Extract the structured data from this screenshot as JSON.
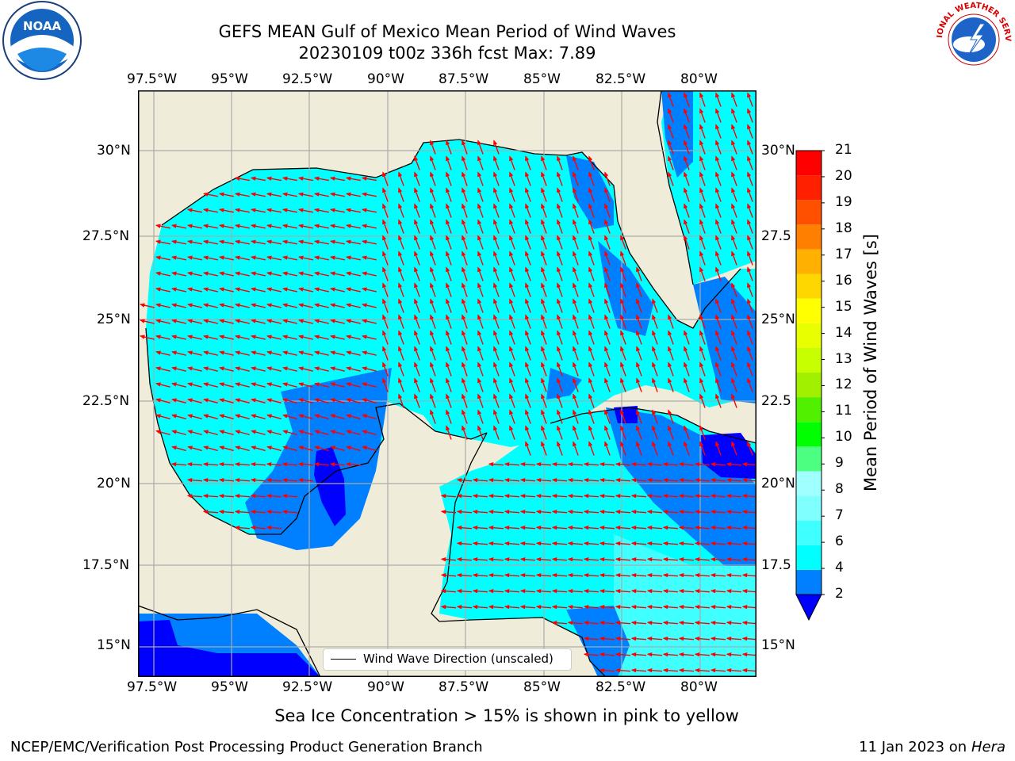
{
  "title": {
    "line1": "GEFS MEAN Gulf of Mexico Mean Period of Wind Waves",
    "line2": "20230109 t00z 336h fcst   Max: 7.89"
  },
  "logos": {
    "left": {
      "name": "noaa-logo",
      "text": "NOAA"
    },
    "right": {
      "name": "nws-logo",
      "text": "NATIONAL WEATHER SERVICE"
    }
  },
  "map": {
    "lon_labels": [
      "97.5°W",
      "95°W",
      "92.5°W",
      "90°W",
      "87.5°W",
      "85°W",
      "82.5°W",
      "80°W"
    ],
    "lat_labels_left": [
      "30°N",
      "27.5°N",
      "25°N",
      "22.5°N",
      "20°N",
      "17.5°N",
      "15°N"
    ],
    "lat_labels_right": [
      "30°N",
      "27.5",
      "25°N",
      "22.5",
      "20°N",
      "17.5",
      "15°N"
    ],
    "legend_label": "Wind Wave Direction (unscaled)",
    "land_color": "#efedda",
    "arrow_color": "#ff0000"
  },
  "colorbar": {
    "title": "Mean Period of Wind Waves [s]",
    "tick_labels": [
      "2",
      "4",
      "6",
      "7",
      "8",
      "9",
      "10",
      "11",
      "12",
      "13",
      "14",
      "15",
      "16",
      "17",
      "18",
      "19",
      "20",
      "21"
    ],
    "colors": [
      "#0000ff",
      "#0080ff",
      "#00ffff",
      "#40ffff",
      "#80ffff",
      "#a0ffff",
      "#4dff80",
      "#00ff00",
      "#50f000",
      "#a0f000",
      "#c8ff00",
      "#e8ff00",
      "#ffff00",
      "#ffd700",
      "#ffb000",
      "#ff8000",
      "#ff5000",
      "#ff2000",
      "#ff0000"
    ]
  },
  "subtitle": "Sea Ice Concentration > 15% is shown in pink to yellow",
  "footer": {
    "left": "NCEP/EMC/Verification Post Processing Product Generation Branch",
    "right_date": "11 Jan 2023 on",
    "right_host": "Hera"
  }
}
